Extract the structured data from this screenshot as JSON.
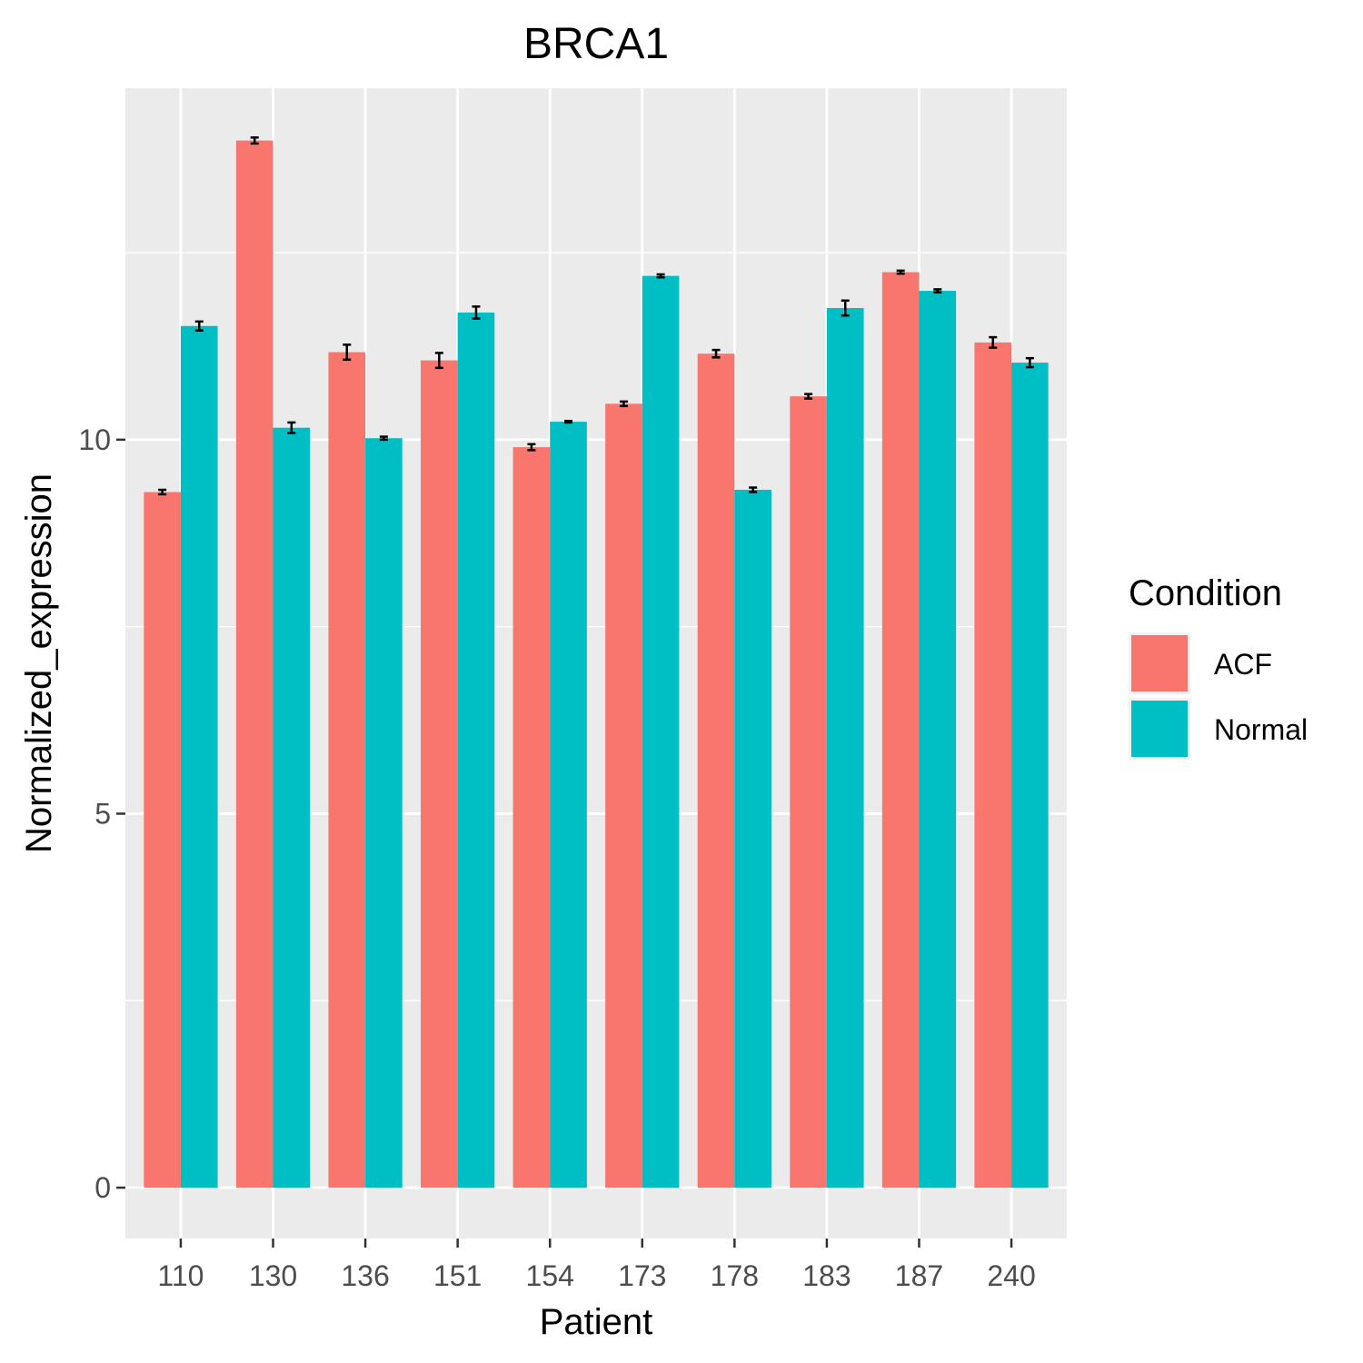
{
  "chart_data": {
    "type": "bar",
    "title": "BRCA1",
    "xlabel": "Patient",
    "ylabel": "Normalized_expression",
    "categories": [
      "110",
      "130",
      "136",
      "151",
      "154",
      "173",
      "178",
      "183",
      "187",
      "240"
    ],
    "series": [
      {
        "name": "ACF",
        "color": "#F8766D",
        "values": [
          9.3,
          14.0,
          11.17,
          11.06,
          9.9,
          10.48,
          11.15,
          10.58,
          12.24,
          11.3
        ],
        "errors": [
          0.03,
          0.04,
          0.1,
          0.1,
          0.04,
          0.03,
          0.05,
          0.03,
          0.02,
          0.07
        ]
      },
      {
        "name": "Normal",
        "color": "#00BFC4",
        "values": [
          11.52,
          10.16,
          10.02,
          11.7,
          10.24,
          12.19,
          9.33,
          11.76,
          11.99,
          11.03
        ],
        "errors": [
          0.06,
          0.07,
          0.02,
          0.08,
          0.01,
          0.02,
          0.03,
          0.1,
          0.02,
          0.06
        ]
      }
    ],
    "ylim": [
      -0.68,
      14.7
    ],
    "yticks": [
      0,
      5,
      10
    ],
    "grid": true,
    "legend": {
      "title": "Condition",
      "position": "right"
    }
  }
}
